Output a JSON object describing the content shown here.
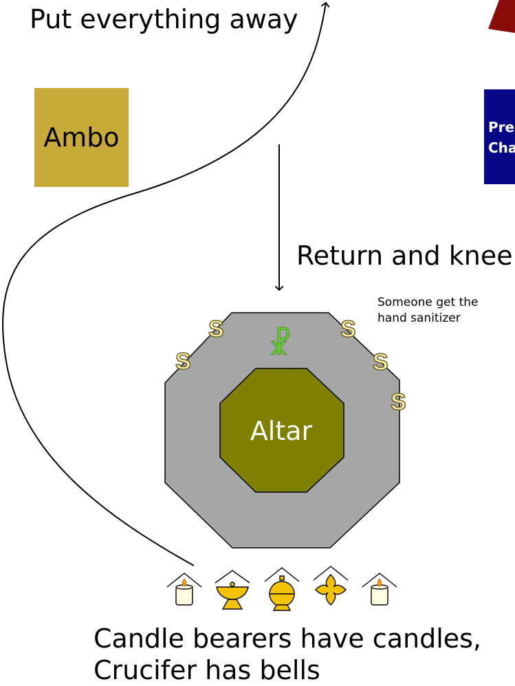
{
  "labels": {
    "put_away": "Put everything away",
    "return_kneel": "Return and kneel",
    "sanitizer_line1": "Someone get the",
    "sanitizer_line2": "hand sanitizer",
    "bottom_line1": "Candle bearers have candles,",
    "bottom_line2": "Crucifer has bells"
  },
  "boxes": {
    "ambo": "Ambo",
    "chair_line1": "Pre",
    "chair_line2": "Cha",
    "altar": "Altar"
  },
  "server_marker": "S",
  "chi_rho_symbol": "☧",
  "procession_icons": [
    "candle-icon",
    "bowl-icon",
    "bell-icon",
    "cross-icon",
    "candle-icon"
  ],
  "colors": {
    "ambo": "#c9a938",
    "chair": "#060686",
    "altar": "#7f7f00",
    "altar_area": "#a6a6a6",
    "server_fill": "#fff2b0",
    "chi_rho": "#66cc33",
    "red_shape": "#8b0b0b",
    "icon_gold": "#f5c400"
  }
}
